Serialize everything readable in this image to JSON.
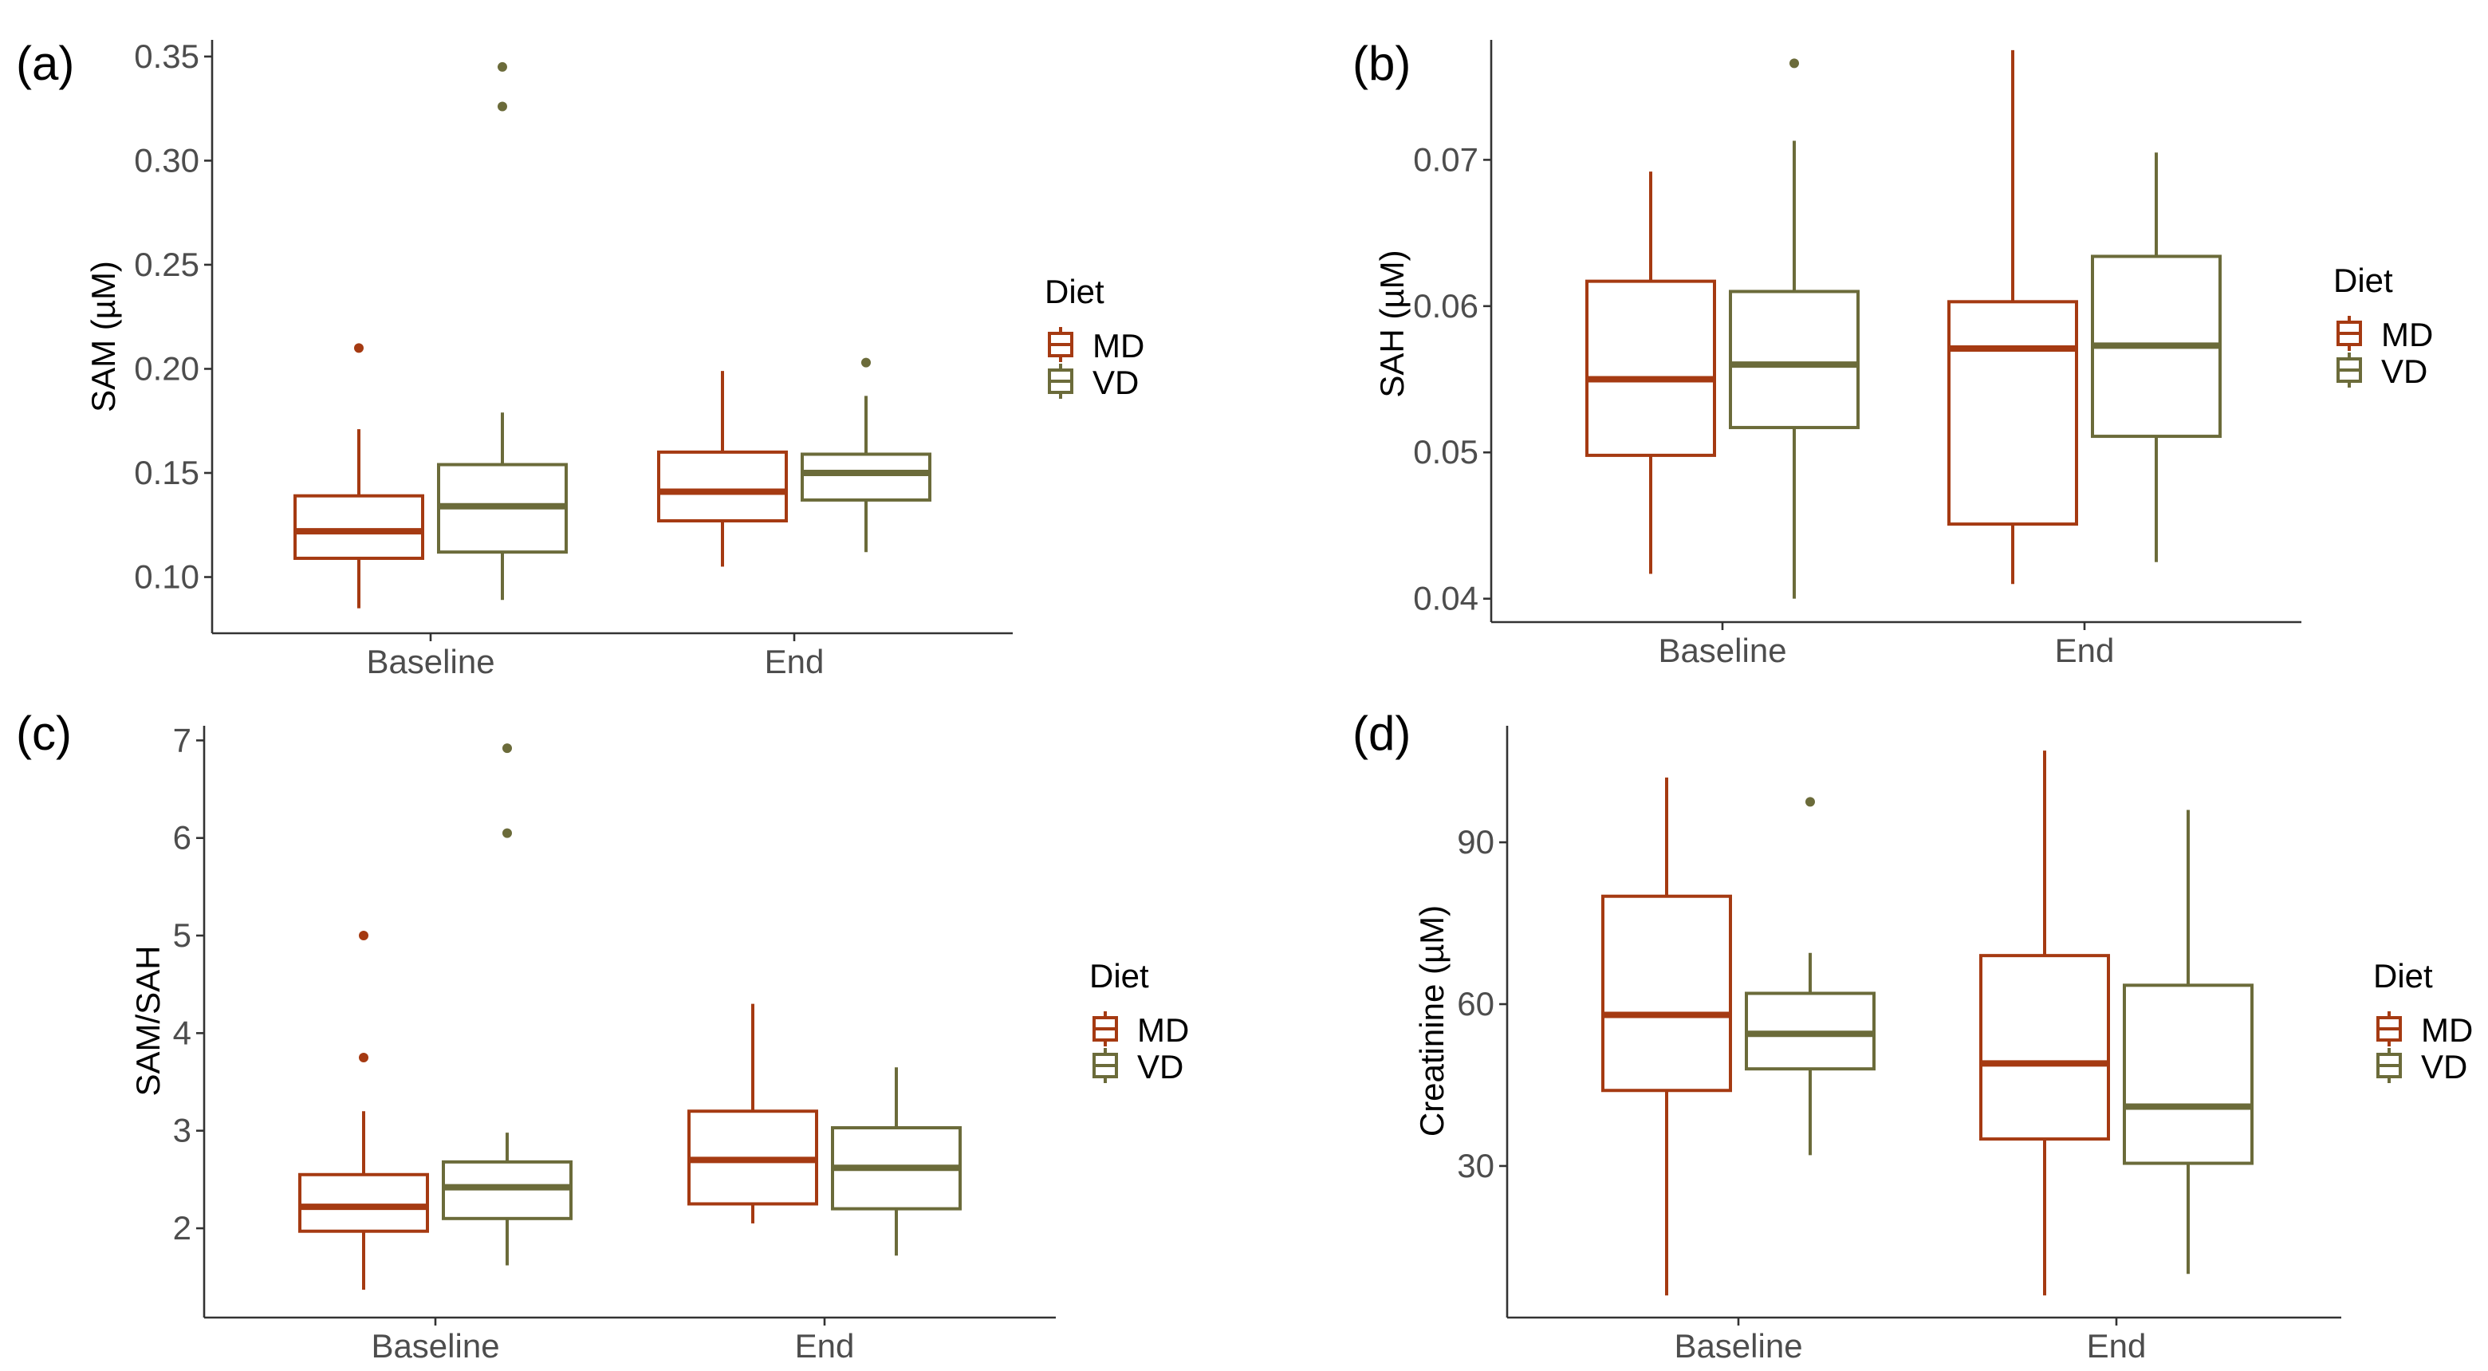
{
  "colors": {
    "MD": "#a53a12",
    "VD": "#6b6b3a",
    "axis": "#333333"
  },
  "chart_data": [
    {
      "type": "box",
      "panel_label": "(a)",
      "ylabel": "SAM (µM)",
      "xlabel": "",
      "categories": [
        "Baseline",
        "End"
      ],
      "ylim": [
        0.073,
        0.358
      ],
      "yticks": [
        0.1,
        0.15,
        0.2,
        0.25,
        0.3,
        0.35
      ],
      "tick_decimals": 2,
      "legend": {
        "title": "Diet",
        "entries": [
          "MD",
          "VD"
        ],
        "position": "right"
      },
      "series": [
        {
          "name": "MD",
          "boxes": [
            {
              "low": 0.085,
              "q1": 0.109,
              "median": 0.122,
              "q3": 0.139,
              "high": 0.171,
              "outliers": [
                0.21
              ]
            },
            {
              "low": 0.105,
              "q1": 0.127,
              "median": 0.141,
              "q3": 0.16,
              "high": 0.199,
              "outliers": []
            }
          ]
        },
        {
          "name": "VD",
          "boxes": [
            {
              "low": 0.089,
              "q1": 0.112,
              "median": 0.134,
              "q3": 0.154,
              "high": 0.179,
              "outliers": [
                0.326,
                0.345
              ]
            },
            {
              "low": 0.112,
              "q1": 0.137,
              "median": 0.15,
              "q3": 0.159,
              "high": 0.187,
              "outliers": [
                0.203
              ]
            }
          ]
        }
      ]
    },
    {
      "type": "box",
      "panel_label": "(b)",
      "ylabel": "SAH (µM)",
      "xlabel": "",
      "categories": [
        "Baseline",
        "End"
      ],
      "ylim": [
        0.0384,
        0.0782
      ],
      "yticks": [
        0.04,
        0.05,
        0.06,
        0.07
      ],
      "tick_decimals": 2,
      "legend": {
        "title": "Diet",
        "entries": [
          "MD",
          "VD"
        ],
        "position": "right"
      },
      "series": [
        {
          "name": "MD",
          "boxes": [
            {
              "low": 0.0417,
              "q1": 0.0498,
              "median": 0.055,
              "q3": 0.0617,
              "high": 0.0692,
              "outliers": []
            },
            {
              "low": 0.041,
              "q1": 0.0451,
              "median": 0.0571,
              "q3": 0.0603,
              "high": 0.0775,
              "outliers": []
            }
          ]
        },
        {
          "name": "VD",
          "boxes": [
            {
              "low": 0.04,
              "q1": 0.0517,
              "median": 0.056,
              "q3": 0.061,
              "high": 0.0713,
              "outliers": [
                0.0766
              ]
            },
            {
              "low": 0.0425,
              "q1": 0.0511,
              "median": 0.0573,
              "q3": 0.0634,
              "high": 0.0705,
              "outliers": []
            }
          ]
        }
      ]
    },
    {
      "type": "box",
      "panel_label": "(c)",
      "ylabel": "SAM/SAH",
      "xlabel": "",
      "categories": [
        "Baseline",
        "End"
      ],
      "ylim": [
        1.085,
        7.15
      ],
      "yticks": [
        2,
        3,
        4,
        5,
        6,
        7
      ],
      "tick_decimals": 0,
      "legend": {
        "title": "Diet",
        "entries": [
          "MD",
          "VD"
        ],
        "position": "right"
      },
      "series": [
        {
          "name": "MD",
          "boxes": [
            {
              "low": 1.37,
              "q1": 1.97,
              "median": 2.22,
              "q3": 2.55,
              "high": 3.2,
              "outliers": [
                3.75,
                5.0
              ]
            },
            {
              "low": 2.05,
              "q1": 2.25,
              "median": 2.7,
              "q3": 3.2,
              "high": 4.3,
              "outliers": []
            }
          ]
        },
        {
          "name": "VD",
          "boxes": [
            {
              "low": 1.62,
              "q1": 2.1,
              "median": 2.42,
              "q3": 2.68,
              "high": 2.98,
              "outliers": [
                6.05,
                6.92
              ]
            },
            {
              "low": 1.72,
              "q1": 2.2,
              "median": 2.62,
              "q3": 3.03,
              "high": 3.65,
              "outliers": []
            }
          ]
        }
      ]
    },
    {
      "type": "box",
      "panel_label": "(d)",
      "ylabel": "Creatinine (µM)",
      "xlabel": "",
      "categories": [
        "Baseline",
        "End"
      ],
      "ylim": [
        1.9,
        111.6
      ],
      "yticks": [
        30,
        60,
        90
      ],
      "tick_decimals": 0,
      "legend": {
        "title": "Diet",
        "entries": [
          "MD",
          "VD"
        ],
        "position": "right"
      },
      "series": [
        {
          "name": "MD",
          "boxes": [
            {
              "low": 6,
              "q1": 44,
              "median": 58,
              "q3": 80,
              "high": 102,
              "outliers": []
            },
            {
              "low": 6,
              "q1": 35,
              "median": 49,
              "q3": 69,
              "high": 107,
              "outliers": []
            }
          ]
        },
        {
          "name": "VD",
          "boxes": [
            {
              "low": 32,
              "q1": 48,
              "median": 54.5,
              "q3": 62,
              "high": 69.5,
              "outliers": [
                97.5
              ]
            },
            {
              "low": 10,
              "q1": 30.5,
              "median": 41,
              "q3": 63.5,
              "high": 96,
              "outliers": []
            }
          ]
        }
      ]
    }
  ]
}
